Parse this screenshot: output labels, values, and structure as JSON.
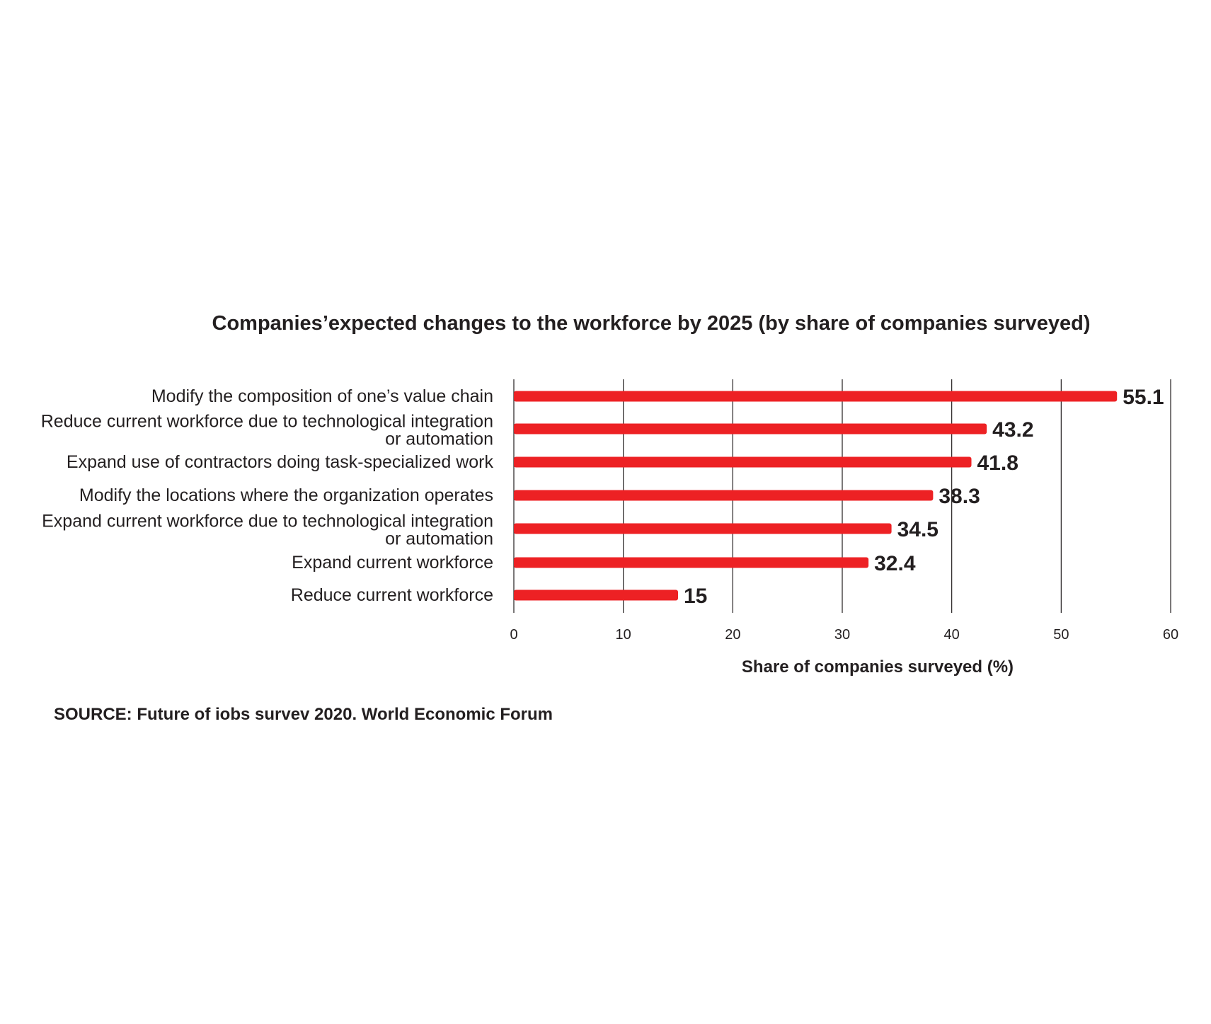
{
  "chart_data": {
    "type": "bar",
    "orientation": "horizontal",
    "title": "Companies’expected changes to the workforce by 2025 (by share of companies surveyed)",
    "categories": [
      [
        "Modify the composition of one’s value chain"
      ],
      [
        "Reduce current workforce due to technological integration",
        "or automation"
      ],
      [
        "Expand use of contractors doing task-specialized work"
      ],
      [
        "Modify the locations where the organization operates"
      ],
      [
        "Expand current workforce due to technological integration",
        "or automation"
      ],
      [
        "Expand current workforce"
      ],
      [
        "Reduce current workforce"
      ]
    ],
    "values": [
      55.1,
      43.2,
      41.8,
      38.3,
      34.5,
      32.4,
      15
    ],
    "value_labels": [
      "55.1",
      "43.2",
      "41.8",
      "38.3",
      "34.5",
      "32.4",
      "15"
    ],
    "xlabel": "Share of companies surveyed (%)",
    "xlim": [
      0,
      60
    ],
    "xticks": [
      "0",
      "10",
      "20",
      "30",
      "40",
      "50",
      "60"
    ],
    "grid": "vertical",
    "bar_color": "#ed2124",
    "grid_color": "#231f20"
  },
  "source": "SOURCE: Future of iobs survev 2020. World Economic Forum"
}
